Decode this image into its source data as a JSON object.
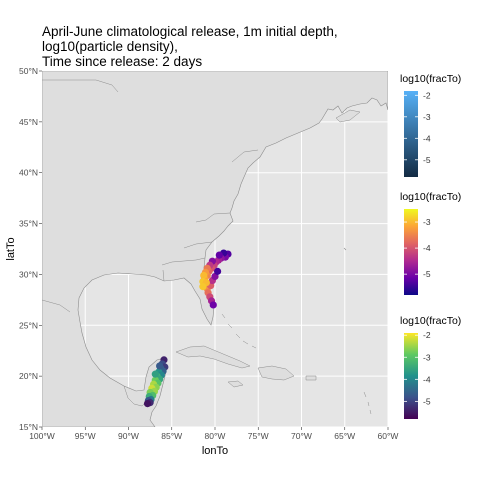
{
  "chart_data": {
    "type": "scatter",
    "title_lines": [
      "April-June climatological release, 1m initial depth,",
      "log10(particle density),",
      "Time since release: 2 days"
    ],
    "xlabel": "lonTo",
    "ylabel": "latTo",
    "xlim": [
      -100,
      -60
    ],
    "ylim": [
      15,
      50
    ],
    "grid": true,
    "x_ticks": [
      {
        "value": -100,
        "label": "100°W"
      },
      {
        "value": -95,
        "label": "95°W"
      },
      {
        "value": -90,
        "label": "90°W"
      },
      {
        "value": -85,
        "label": "85°W"
      },
      {
        "value": -80,
        "label": "80°W"
      },
      {
        "value": -75,
        "label": "75°W"
      },
      {
        "value": -70,
        "label": "70°W"
      },
      {
        "value": -65,
        "label": "65°W"
      },
      {
        "value": -60,
        "label": "60°W"
      }
    ],
    "y_ticks": [
      {
        "value": 15,
        "label": "15°N"
      },
      {
        "value": 20,
        "label": "20°N"
      },
      {
        "value": 25,
        "label": "25°N"
      },
      {
        "value": 30,
        "label": "30°N"
      },
      {
        "value": 35,
        "label": "35°N"
      },
      {
        "value": 40,
        "label": "40°N"
      },
      {
        "value": 45,
        "label": "45°N"
      },
      {
        "value": 50,
        "label": "50°N"
      }
    ],
    "colors": {
      "panel": "#e5e5e5",
      "land": "#dedede",
      "coast": "#8c8c8c",
      "grid": "#ffffff"
    },
    "legends": [
      {
        "title": "log10(fracTo)",
        "palette": "blues",
        "stops": [
          "#132b43",
          "#56b1f7"
        ],
        "range": [
          -5.8,
          -1.8
        ],
        "ticks": [
          -2,
          -3,
          -4,
          -5
        ],
        "tick_labels": [
          "-2",
          "-3",
          "-4",
          "-5"
        ]
      },
      {
        "title": "log10(fracTo)",
        "palette": "plasma",
        "stops": [
          "#0d0887",
          "#6a00a8",
          "#b12a90",
          "#e16462",
          "#fca636",
          "#f0f921"
        ],
        "range": [
          -5.8,
          -2.5
        ],
        "ticks": [
          -3,
          -4,
          -5
        ],
        "tick_labels": [
          "-3",
          "-4",
          "-5"
        ]
      },
      {
        "title": "log10(fracTo)",
        "palette": "viridis",
        "stops": [
          "#440154",
          "#3b528b",
          "#21918c",
          "#5ec962",
          "#fde725"
        ],
        "range": [
          -5.8,
          -1.9
        ],
        "ticks": [
          -2,
          -3,
          -4,
          -5
        ],
        "tick_labels": [
          "-2",
          "-3",
          "-4",
          "-5"
        ]
      }
    ],
    "series": [
      {
        "palette": "plasma",
        "points": [
          {
            "lon": -78.5,
            "lat": 32.0,
            "value": -5.3
          },
          {
            "lon": -78.8,
            "lat": 31.7,
            "value": -5.0
          },
          {
            "lon": -79.0,
            "lat": 32.1,
            "value": -5.5
          },
          {
            "lon": -79.3,
            "lat": 31.6,
            "value": -4.8
          },
          {
            "lon": -79.6,
            "lat": 31.4,
            "value": -4.6
          },
          {
            "lon": -79.5,
            "lat": 31.9,
            "value": -5.2
          },
          {
            "lon": -79.9,
            "lat": 31.2,
            "value": -4.5
          },
          {
            "lon": -80.1,
            "lat": 30.9,
            "value": -4.2
          },
          {
            "lon": -80.3,
            "lat": 31.3,
            "value": -4.9
          },
          {
            "lon": -80.4,
            "lat": 30.6,
            "value": -4.0
          },
          {
            "lon": -80.6,
            "lat": 30.9,
            "value": -4.3
          },
          {
            "lon": -80.7,
            "lat": 30.3,
            "value": -3.8
          },
          {
            "lon": -80.9,
            "lat": 30.6,
            "value": -3.6
          },
          {
            "lon": -80.9,
            "lat": 29.9,
            "value": -3.5
          },
          {
            "lon": -81.1,
            "lat": 30.2,
            "value": -3.3
          },
          {
            "lon": -81.2,
            "lat": 29.6,
            "value": -3.2
          },
          {
            "lon": -81.3,
            "lat": 29.9,
            "value": -3.0
          },
          {
            "lon": -81.4,
            "lat": 29.3,
            "value": -2.9
          },
          {
            "lon": -81.2,
            "lat": 28.9,
            "value": -3.1
          },
          {
            "lon": -80.9,
            "lat": 28.6,
            "value": -3.4
          },
          {
            "lon": -80.8,
            "lat": 28.2,
            "value": -3.7
          },
          {
            "lon": -80.6,
            "lat": 27.8,
            "value": -4.1
          },
          {
            "lon": -80.4,
            "lat": 27.4,
            "value": -4.6
          },
          {
            "lon": -80.2,
            "lat": 27.0,
            "value": -5.1
          },
          {
            "lon": -80.5,
            "lat": 28.9,
            "value": -3.9
          },
          {
            "lon": -80.3,
            "lat": 29.4,
            "value": -4.4
          },
          {
            "lon": -80.0,
            "lat": 29.8,
            "value": -4.9
          },
          {
            "lon": -79.7,
            "lat": 30.3,
            "value": -5.4
          },
          {
            "lon": -81.0,
            "lat": 29.2,
            "value": -3.0
          },
          {
            "lon": -81.4,
            "lat": 28.8,
            "value": -2.9
          }
        ]
      },
      {
        "palette": "viridis",
        "points": [
          {
            "lon": -85.9,
            "lat": 21.6,
            "value": -5.4
          },
          {
            "lon": -86.1,
            "lat": 21.2,
            "value": -4.9
          },
          {
            "lon": -85.8,
            "lat": 20.9,
            "value": -5.1
          },
          {
            "lon": -86.3,
            "lat": 20.8,
            "value": -4.4
          },
          {
            "lon": -86.0,
            "lat": 20.5,
            "value": -4.6
          },
          {
            "lon": -86.5,
            "lat": 20.4,
            "value": -3.8
          },
          {
            "lon": -86.2,
            "lat": 20.1,
            "value": -4.0
          },
          {
            "lon": -86.7,
            "lat": 20.0,
            "value": -3.3
          },
          {
            "lon": -86.4,
            "lat": 19.7,
            "value": -3.5
          },
          {
            "lon": -86.9,
            "lat": 19.6,
            "value": -2.8
          },
          {
            "lon": -86.6,
            "lat": 19.3,
            "value": -3.0
          },
          {
            "lon": -87.1,
            "lat": 19.2,
            "value": -2.4
          },
          {
            "lon": -86.8,
            "lat": 18.9,
            "value": -2.6
          },
          {
            "lon": -87.3,
            "lat": 18.8,
            "value": -2.2
          },
          {
            "lon": -87.0,
            "lat": 18.5,
            "value": -2.5
          },
          {
            "lon": -87.5,
            "lat": 18.4,
            "value": -2.7
          },
          {
            "lon": -87.2,
            "lat": 18.1,
            "value": -3.1
          },
          {
            "lon": -87.6,
            "lat": 18.0,
            "value": -3.4
          },
          {
            "lon": -87.4,
            "lat": 17.7,
            "value": -4.2
          },
          {
            "lon": -87.7,
            "lat": 17.6,
            "value": -4.8
          },
          {
            "lon": -87.5,
            "lat": 17.4,
            "value": -5.3
          },
          {
            "lon": -87.8,
            "lat": 17.3,
            "value": -5.6
          },
          {
            "lon": -86.4,
            "lat": 21.0,
            "value": -4.7
          },
          {
            "lon": -86.9,
            "lat": 20.2,
            "value": -3.6
          }
        ]
      }
    ]
  }
}
